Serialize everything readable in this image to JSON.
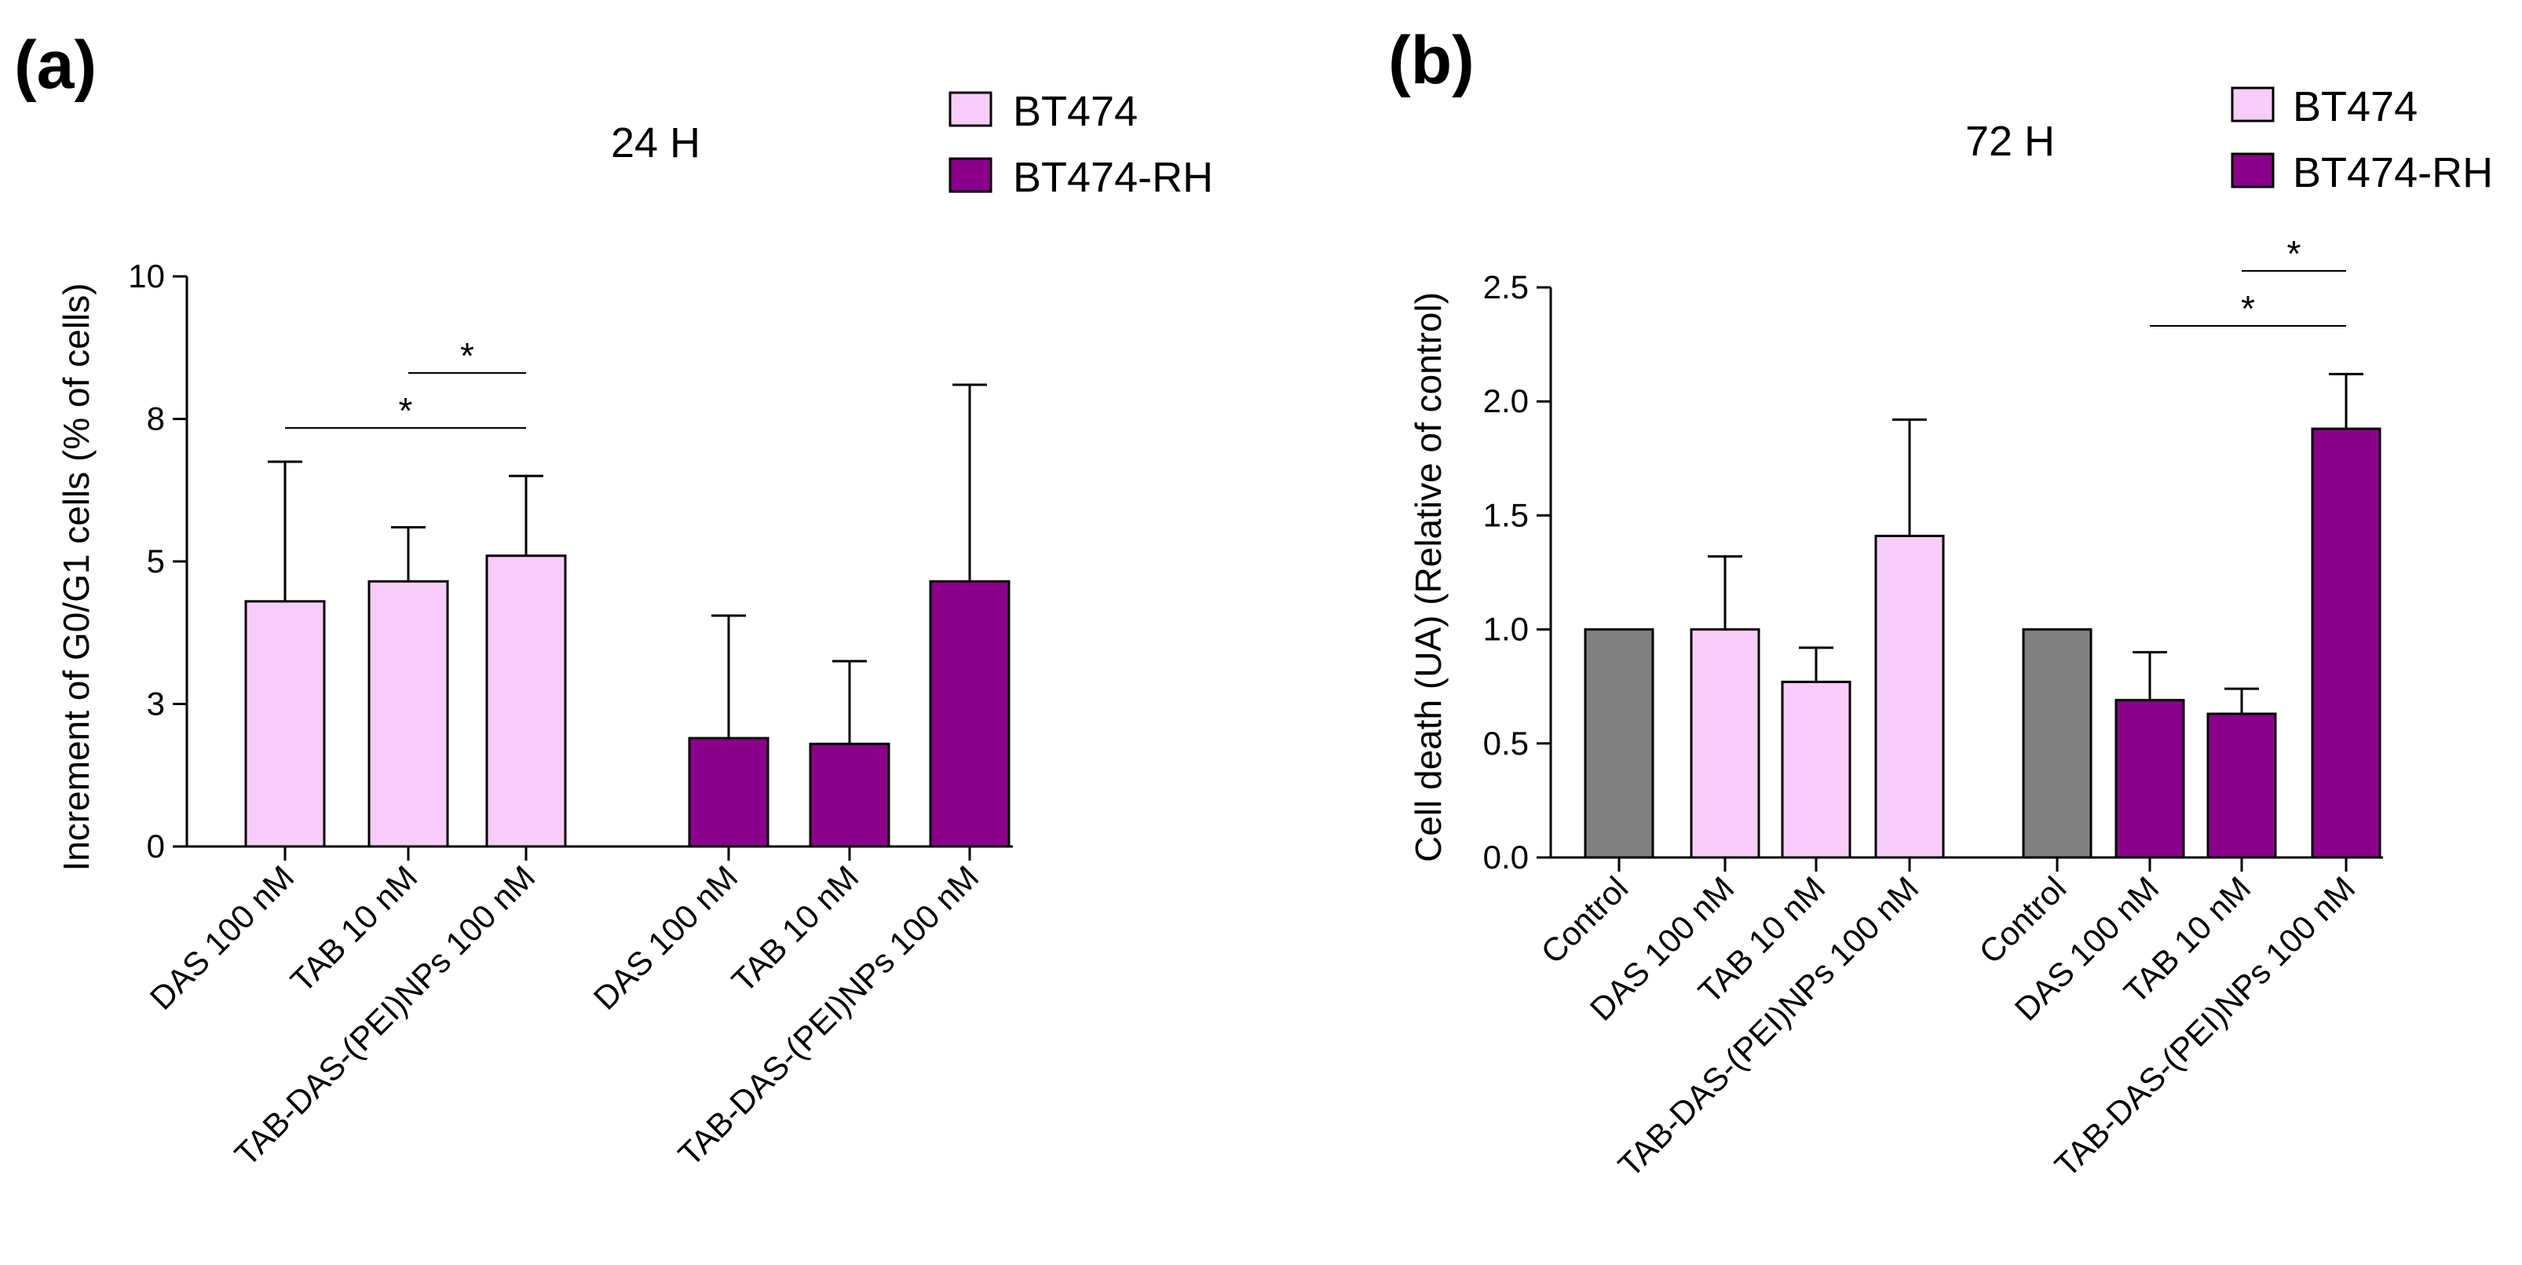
{
  "chart_data": [
    {
      "id": "a",
      "panel_label": "(a)",
      "type": "bar",
      "title": "24 H",
      "ylabel": "Increment of G0/G1 cells (% of cells)",
      "xlabel": "",
      "ylim": [
        0,
        10
      ],
      "yticks": [
        0,
        2.5,
        5,
        7.5,
        10
      ],
      "ytick_labels": [
        "0",
        "3",
        "5",
        "8",
        "10"
      ],
      "legend": [
        {
          "label": "BT474",
          "color": "#F8CCF8"
        },
        {
          "label": "BT474-RH",
          "color": "#8B008B"
        }
      ],
      "bars": [
        {
          "label": "DAS 100 nM",
          "value": 4.3,
          "error": 2.45,
          "group": "BT474",
          "color": "#F8CCF8"
        },
        {
          "label": "TAB 10 nM",
          "value": 4.65,
          "error": 0.95,
          "group": "BT474",
          "color": "#F8CCF8"
        },
        {
          "label": "TAB-DAS-(PEI)NPs 100 nM",
          "value": 5.1,
          "error": 1.4,
          "group": "BT474",
          "color": "#F8CCF8"
        },
        {
          "label": "DAS 100 nM",
          "value": 1.9,
          "error": 2.15,
          "group": "BT474-RH",
          "color": "#8B008B"
        },
        {
          "label": "TAB 10 nM",
          "value": 1.8,
          "error": 1.45,
          "group": "BT474-RH",
          "color": "#8B008B"
        },
        {
          "label": "TAB-DAS-(PEI)NPs 100 nM",
          "value": 4.65,
          "error": 3.45,
          "group": "BT474-RH",
          "color": "#8B008B"
        }
      ],
      "significance": [
        {
          "from": 1,
          "to": 2,
          "symbol": "*"
        },
        {
          "from": 0,
          "to": 2,
          "symbol": "*"
        }
      ]
    },
    {
      "id": "b",
      "panel_label": "(b)",
      "type": "bar",
      "title": "72 H",
      "ylabel": "Cell death (UA) (Relative of control)",
      "xlabel": "",
      "ylim": [
        0,
        2.5
      ],
      "yticks": [
        0,
        0.5,
        1.0,
        1.5,
        2.0,
        2.5
      ],
      "ytick_labels": [
        "0.0",
        "0.5",
        "1.0",
        "1.5",
        "2.0",
        "2.5"
      ],
      "legend": [
        {
          "label": "BT474",
          "color": "#F8CCF8"
        },
        {
          "label": "BT474-RH",
          "color": "#8B008B"
        }
      ],
      "bars": [
        {
          "label": "Control",
          "value": 1.0,
          "error": 0,
          "group": "BT474",
          "color": "#808080"
        },
        {
          "label": "DAS 100 nM",
          "value": 1.0,
          "error": 0.32,
          "group": "BT474",
          "color": "#F8CCF8"
        },
        {
          "label": "TAB 10 nM",
          "value": 0.77,
          "error": 0.15,
          "group": "BT474",
          "color": "#F8CCF8"
        },
        {
          "label": "TAB-DAS-(PEI)NPs 100 nM",
          "value": 1.41,
          "error": 0.51,
          "group": "BT474",
          "color": "#F8CCF8"
        },
        {
          "label": "Control",
          "value": 1.0,
          "error": 0,
          "group": "BT474-RH",
          "color": "#808080"
        },
        {
          "label": "DAS 100 nM",
          "value": 0.69,
          "error": 0.21,
          "group": "BT474-RH",
          "color": "#8B008B"
        },
        {
          "label": "TAB 10 nM",
          "value": 0.63,
          "error": 0.11,
          "group": "BT474-RH",
          "color": "#8B008B"
        },
        {
          "label": "TAB-DAS-(PEI)NPs 100 nM",
          "value": 1.88,
          "error": 0.24,
          "group": "BT474-RH",
          "color": "#8B008B"
        }
      ],
      "significance": [
        {
          "from": 6,
          "to": 7,
          "symbol": "*"
        },
        {
          "from": 5,
          "to": 7,
          "symbol": "*"
        }
      ]
    }
  ]
}
